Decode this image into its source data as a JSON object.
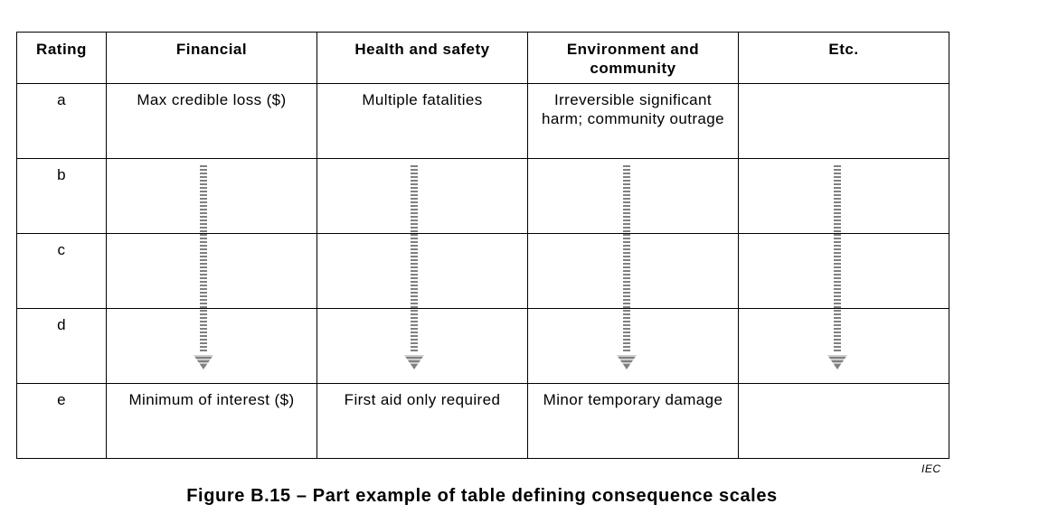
{
  "table": {
    "headers": [
      "Rating",
      "Financial",
      "Health and safety",
      "Environment and community",
      "Etc."
    ],
    "rows": [
      {
        "rating": "a",
        "financial": "Max credible loss ($)",
        "health_safety": "Multiple fatalities",
        "environment": "Irreversible significant harm; community outrage",
        "etc": ""
      },
      {
        "rating": "b",
        "financial": "",
        "health_safety": "",
        "environment": "",
        "etc": ""
      },
      {
        "rating": "c",
        "financial": "",
        "health_safety": "",
        "environment": "",
        "etc": ""
      },
      {
        "rating": "d",
        "financial": "",
        "health_safety": "",
        "environment": "",
        "etc": ""
      },
      {
        "rating": "e",
        "financial": "Minimum of interest ($)",
        "health_safety": "First aid only required",
        "environment": "Minor temporary damage",
        "etc": ""
      }
    ]
  },
  "source_mark": "IEC",
  "caption": "Figure B.15 – Part example of table defining consequence scales",
  "colors": {
    "border": "#000000",
    "arrow": "#808080"
  },
  "arrow_icon": "dashed-down-arrow-icon"
}
